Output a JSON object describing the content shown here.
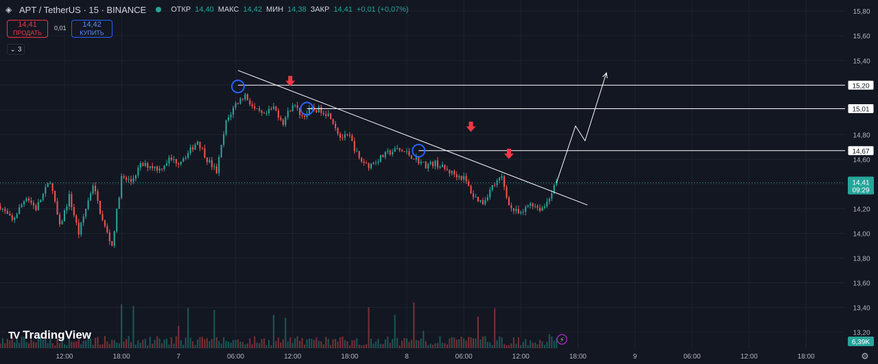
{
  "header": {
    "symbol_title": "APT / TetherUS · 15 · BINANCE",
    "symbol_icon": "apt-token-icon",
    "open_label": "ОТКР",
    "open_value": "14,40",
    "high_label": "МАКС",
    "high_value": "14,42",
    "low_label": "МИН",
    "low_value": "14,38",
    "close_label": "ЗАКР",
    "close_value": "14,41",
    "change_value": "+0,01 (+0,07%)"
  },
  "trade": {
    "sell_price": "14,41",
    "sell_label": "ПРОДАТЬ",
    "spread": "0,01",
    "buy_price": "14,42",
    "buy_label": "КУПИТЬ"
  },
  "indicators_toggle": {
    "icon": "chevron-down-icon",
    "count": "3"
  },
  "branding": {
    "logo_text": "TradingView",
    "logo_mark": "TV"
  },
  "colors": {
    "background": "#131722",
    "up": "#26a69a",
    "down": "#ef5350",
    "grid": "#1e222d",
    "axis_text": "#b2b5be",
    "annotation": "#ffffff",
    "arrow": "#f23645",
    "circle": "#2962ff",
    "last_price_tag": "#26a69a"
  },
  "chart_data": {
    "type": "candlestick",
    "price_axis_ticks": [
      "15,80",
      "15,60",
      "15,40",
      "15,20",
      "15,00",
      "14,80",
      "14,60",
      "14,40",
      "14,20",
      "14,00",
      "13,80",
      "13,60",
      "13,40",
      "13,20"
    ],
    "time_axis_ticks": [
      {
        "label": "12:00",
        "t": 12
      },
      {
        "label": "18:00",
        "t": 18
      },
      {
        "label": "7",
        "t": 24
      },
      {
        "label": "06:00",
        "t": 30
      },
      {
        "label": "12:00",
        "t": 36
      },
      {
        "label": "18:00",
        "t": 42
      },
      {
        "label": "8",
        "t": 48
      },
      {
        "label": "06:00",
        "t": 54
      },
      {
        "label": "12:00",
        "t": 60
      },
      {
        "label": "18:00",
        "t": 66
      },
      {
        "label": "9",
        "t": 72
      },
      {
        "label": "06:00",
        "t": 78
      },
      {
        "label": "12:00",
        "t": 84
      },
      {
        "label": "18:00",
        "t": 90
      }
    ],
    "t_range": [
      5.22,
      94.1
    ],
    "ylim": [
      13.07,
      15.89
    ],
    "bar_interval_hours": 0.25,
    "last_bar_t": 63.75,
    "price_path": [
      [
        5.25,
        14.22
      ],
      [
        6.5,
        14.1
      ],
      [
        8,
        14.3
      ],
      [
        9,
        14.2
      ],
      [
        10.5,
        14.43
      ],
      [
        11.5,
        14.05
      ],
      [
        12.5,
        14.3
      ],
      [
        13.5,
        14.0
      ],
      [
        15,
        14.4
      ],
      [
        16,
        14.1
      ],
      [
        17,
        13.9
      ],
      [
        18,
        14.45
      ],
      [
        19,
        14.42
      ],
      [
        20,
        14.55
      ],
      [
        21,
        14.55
      ],
      [
        22,
        14.52
      ],
      [
        23,
        14.6
      ],
      [
        24,
        14.58
      ],
      [
        25,
        14.65
      ],
      [
        26,
        14.75
      ],
      [
        27,
        14.6
      ],
      [
        28,
        14.5
      ],
      [
        28.5,
        14.7
      ],
      [
        29,
        14.9
      ],
      [
        30,
        15.05
      ],
      [
        31,
        15.12
      ],
      [
        32,
        15.0
      ],
      [
        33,
        14.95
      ],
      [
        34,
        15.02
      ],
      [
        35,
        14.9
      ],
      [
        36,
        15.05
      ],
      [
        37,
        14.95
      ],
      [
        38,
        15.0
      ],
      [
        39,
        15.0
      ],
      [
        40,
        14.95
      ],
      [
        41,
        14.78
      ],
      [
        42,
        14.78
      ],
      [
        43,
        14.6
      ],
      [
        44,
        14.55
      ],
      [
        45,
        14.6
      ],
      [
        46,
        14.65
      ],
      [
        47,
        14.68
      ],
      [
        48,
        14.65
      ],
      [
        49,
        14.6
      ],
      [
        50,
        14.55
      ],
      [
        51,
        14.57
      ],
      [
        52,
        14.52
      ],
      [
        53,
        14.48
      ],
      [
        54,
        14.45
      ],
      [
        55,
        14.3
      ],
      [
        56,
        14.25
      ],
      [
        57,
        14.38
      ],
      [
        58,
        14.45
      ],
      [
        58.5,
        14.3
      ],
      [
        59,
        14.2
      ],
      [
        60,
        14.15
      ],
      [
        61,
        14.25
      ],
      [
        62,
        14.2
      ],
      [
        62.5,
        14.22
      ],
      [
        63,
        14.3
      ],
      [
        63.75,
        14.41
      ]
    ],
    "volume_axis_label": "6,39K",
    "last_price": "14,41",
    "last_price_countdown": "09:29",
    "horizontal_levels": [
      {
        "price": 15.2,
        "label": "15,20",
        "from_t": 30.25
      },
      {
        "price": 15.01,
        "label": "15,01",
        "from_t": 37.5
      },
      {
        "price": 14.67,
        "label": "14,67",
        "from_t": 49.25
      }
    ],
    "trendline": {
      "points": [
        [
          30.25,
          15.32
        ],
        [
          67,
          14.23
        ]
      ]
    },
    "projection_path": [
      [
        63.75,
        14.41
      ],
      [
        65.75,
        14.87
      ],
      [
        66.75,
        14.75
      ],
      [
        69,
        15.3
      ]
    ],
    "touch_circles": [
      {
        "t": 30.25,
        "price": 15.19
      },
      {
        "t": 37.5,
        "price": 15.01
      },
      {
        "t": 49.25,
        "price": 14.67
      }
    ],
    "down_arrows": [
      {
        "t": 35.75,
        "price": 15.22
      },
      {
        "t": 54.75,
        "price": 14.85
      },
      {
        "t": 58.75,
        "price": 14.63
      }
    ],
    "series": [
      {
        "name": "APT / TetherUS"
      }
    ]
  }
}
